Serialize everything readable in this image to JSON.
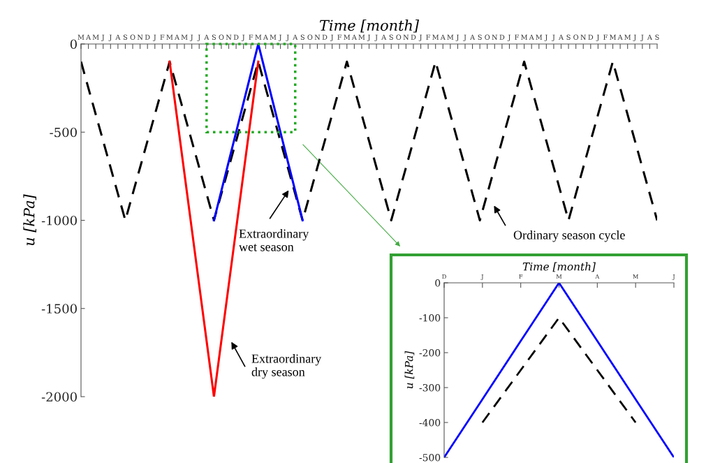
{
  "chart_data": [
    {
      "type": "line",
      "xlabel": "Time [month]",
      "ylabel": "u [kPa]",
      "ylim": [
        -2000,
        0
      ],
      "yticks": [
        0,
        -500,
        -1000,
        -1500,
        -2000
      ],
      "categories": [
        "M",
        "A",
        "M",
        "J",
        "J",
        "A",
        "S",
        "O",
        "N",
        "D",
        "J",
        "F",
        "M",
        "A",
        "M",
        "J",
        "J",
        "A",
        "S",
        "O",
        "N",
        "D",
        "J",
        "F",
        "M",
        "A",
        "M",
        "J",
        "J",
        "A",
        "S",
        "O",
        "N",
        "D",
        "J",
        "F",
        "M",
        "A",
        "M",
        "J",
        "J",
        "A",
        "S",
        "O",
        "N",
        "D",
        "J",
        "F",
        "M",
        "A",
        "M",
        "J",
        "J",
        "A",
        "S",
        "O",
        "N",
        "D",
        "J",
        "F",
        "M",
        "A",
        "M",
        "J",
        "J",
        "A",
        "S",
        "O",
        "N",
        "D",
        "J",
        "F",
        "M",
        "A",
        "M",
        "J",
        "J",
        "A",
        "S"
      ],
      "series": [
        {
          "color": "#000000",
          "line_style": "dashed",
          "values": [
            -100,
            -250,
            -400,
            -550,
            -700,
            -850,
            -1000,
            -850,
            -700,
            -550,
            -400,
            -250,
            -100,
            -250,
            -400,
            -550,
            -700,
            -850,
            -1000,
            -850,
            -700,
            -550,
            -400,
            -250,
            -100,
            -250,
            -400,
            -550,
            -700,
            -850,
            -1000,
            -850,
            -700,
            -550,
            -400,
            -250,
            -100,
            -250,
            -400,
            -550,
            -700,
            -850,
            -1000,
            -850,
            -700,
            -550,
            -400,
            -250,
            -100,
            -250,
            -400,
            -550,
            -700,
            -850,
            -1000,
            -850,
            -700,
            -550,
            -400,
            -250,
            -100,
            -250,
            -400,
            -550,
            -700,
            -850,
            -1000,
            -850,
            -700,
            -550,
            -400,
            -250,
            -100,
            -250,
            -400,
            -550,
            -700,
            -850,
            -1000
          ]
        },
        {
          "color": "#ff0000",
          "line_style": "solid",
          "values": [
            null,
            null,
            null,
            null,
            null,
            null,
            null,
            null,
            null,
            null,
            null,
            null,
            -100,
            -416.7,
            -733.3,
            -1050,
            -1366.7,
            -1683.3,
            -2000,
            -1683.3,
            -1366.7,
            -1050,
            -733.3,
            -416.7,
            -100,
            null,
            null,
            null,
            null,
            null,
            null,
            null,
            null,
            null,
            null,
            null,
            null,
            null,
            null,
            null,
            null,
            null,
            null,
            null,
            null,
            null,
            null,
            null,
            null,
            null,
            null,
            null,
            null,
            null,
            null,
            null,
            null,
            null,
            null,
            null,
            null,
            null,
            null,
            null,
            null,
            null,
            null,
            null,
            null,
            null,
            null,
            null,
            null,
            null,
            null,
            null,
            null,
            null,
            null
          ]
        },
        {
          "color": "#0000ff",
          "line_style": "solid",
          "values": [
            null,
            null,
            null,
            null,
            null,
            null,
            null,
            null,
            null,
            null,
            null,
            null,
            null,
            null,
            null,
            null,
            null,
            null,
            -1000,
            -833.3,
            -666.7,
            -500,
            -333.3,
            -166.7,
            0,
            -166.7,
            -333.3,
            -500,
            -666.7,
            -833.3,
            -1000,
            null,
            null,
            null,
            null,
            null,
            null,
            null,
            null,
            null,
            null,
            null,
            null,
            null,
            null,
            null,
            null,
            null,
            null,
            null,
            null,
            null,
            null,
            null,
            null,
            null,
            null,
            null,
            null,
            null,
            null,
            null,
            null,
            null,
            null,
            null,
            null,
            null,
            null,
            null,
            null,
            null,
            null,
            null,
            null,
            null,
            null,
            null,
            null
          ]
        }
      ],
      "annotations": [
        "Extraordinary\nwet season",
        "Extraordinary\ndry season",
        "Ordinary season cycle"
      ],
      "grid": false,
      "legend": false
    },
    {
      "type": "line",
      "xlabel": "Time [month]",
      "ylabel": "u [kPa]",
      "ylim": [
        -500,
        0
      ],
      "yticks": [
        0,
        -100,
        -200,
        -300,
        -400,
        -500
      ],
      "categories": [
        "D",
        "J",
        "F",
        "M",
        "A",
        "M",
        "J"
      ],
      "series": [
        {
          "color": "#000000",
          "line_style": "dashed",
          "values": [
            null,
            -400,
            -250,
            -100,
            -250,
            -400,
            null
          ]
        },
        {
          "color": "#0000ff",
          "line_style": "solid",
          "values": [
            -500,
            -333.3,
            -166.7,
            0,
            -166.7,
            -333.3,
            -500
          ]
        }
      ],
      "grid": false,
      "legend": false
    }
  ]
}
